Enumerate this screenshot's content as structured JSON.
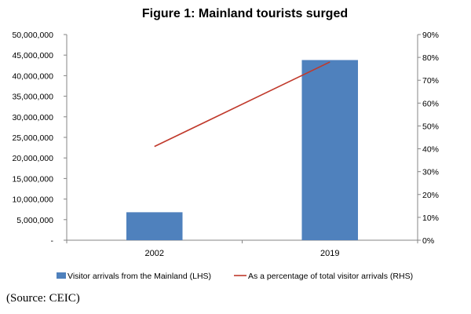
{
  "chart_data": {
    "type": "bar+line",
    "title": "Figure 1: Mainland tourists surged",
    "categories": [
      "2002",
      "2019"
    ],
    "series": [
      {
        "name": "Visitor arrivals from the Mainland (LHS)",
        "type": "bar",
        "axis": "left",
        "color": "#4f81bd",
        "values": [
          6800000,
          43800000
        ]
      },
      {
        "name": "As a percentage of total visitor arrivals (RHS)",
        "type": "line",
        "axis": "right",
        "color": "#c0392b",
        "values": [
          41,
          78
        ]
      }
    ],
    "left_axis": {
      "ylim": [
        0,
        50000000
      ],
      "ticks": [
        "-",
        "5,000,000",
        "10,000,000",
        "15,000,000",
        "20,000,000",
        "25,000,000",
        "30,000,000",
        "35,000,000",
        "40,000,000",
        "45,000,000",
        "50,000,000"
      ]
    },
    "right_axis": {
      "ylim": [
        0,
        90
      ],
      "ticks": [
        "0%",
        "10%",
        "20%",
        "30%",
        "40%",
        "50%",
        "60%",
        "70%",
        "80%",
        "90%"
      ]
    },
    "grid": false,
    "legend_position": "bottom"
  },
  "source_note": "(Source: CEIC)"
}
